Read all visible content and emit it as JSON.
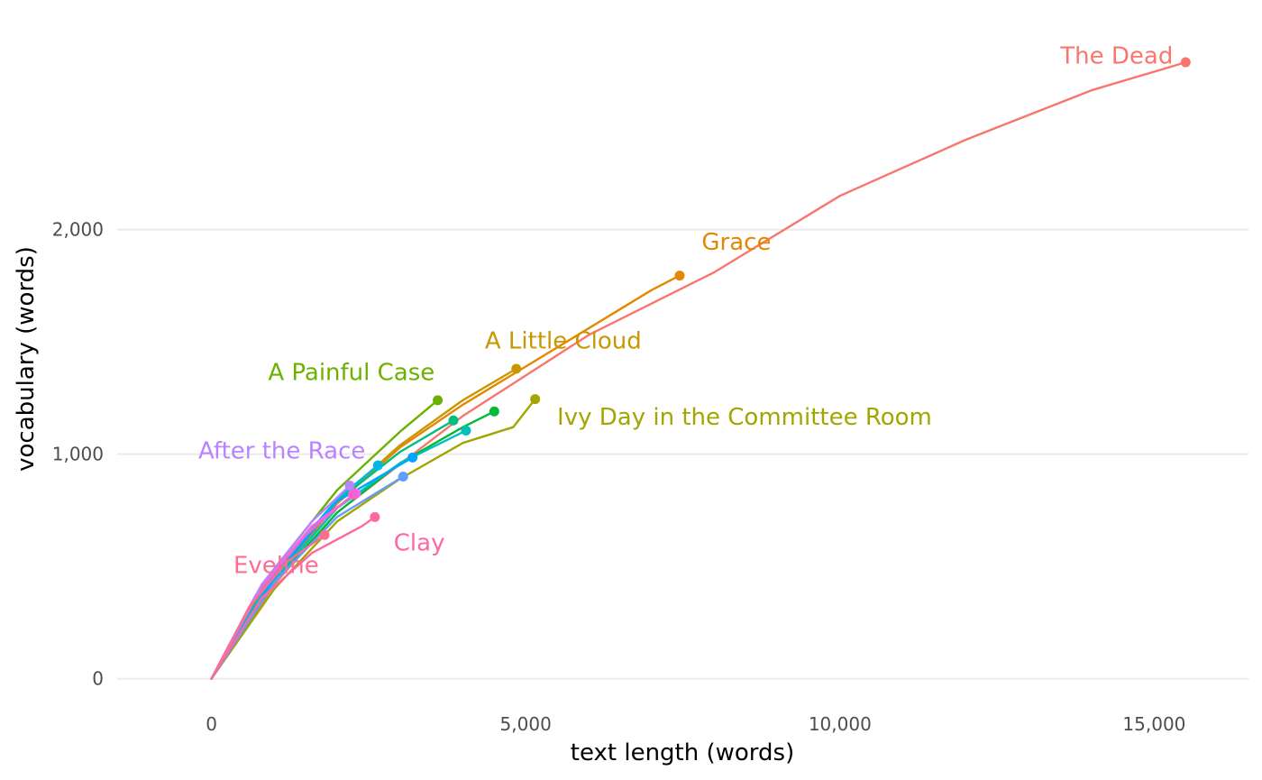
{
  "chart_data": {
    "type": "line",
    "xlabel": "text length (words)",
    "ylabel": "vocabulary (words)",
    "xlim": [
      -1500,
      16500
    ],
    "ylim": [
      -150,
      2950
    ],
    "x_ticks": [
      0,
      5000,
      10000,
      15000
    ],
    "x_tick_labels": [
      "0",
      "5,000",
      "10,000",
      "15,000"
    ],
    "y_ticks": [
      0,
      1000,
      2000
    ],
    "y_tick_labels": [
      "0",
      "1,000",
      "2,000"
    ],
    "grid": "horizontal",
    "legend": "none",
    "series": [
      {
        "name": "The Dead",
        "color": "#F8766D",
        "labeled": true,
        "label_anchor": "end",
        "label_at": [
          15300,
          2740
        ],
        "x": [
          0,
          1000,
          2000,
          4000,
          6000,
          8000,
          10000,
          12000,
          14000,
          15500
        ],
        "y": [
          0,
          420,
          740,
          1170,
          1530,
          1810,
          2150,
          2400,
          2620,
          2745
        ]
      },
      {
        "name": "Grace",
        "color": "#E58700",
        "labeled": true,
        "label_anchor": "start",
        "label_at": [
          7800,
          1910
        ],
        "x": [
          0,
          1000,
          2000,
          3000,
          4000,
          5000,
          6000,
          7000,
          7450
        ],
        "y": [
          0,
          440,
          780,
          1030,
          1220,
          1390,
          1560,
          1730,
          1795
        ]
      },
      {
        "name": "A Little Cloud",
        "color": "#C99800",
        "labeled": true,
        "label_anchor": "start",
        "label_at": [
          4350,
          1470
        ],
        "x": [
          0,
          1000,
          2000,
          3000,
          4000,
          4850
        ],
        "y": [
          0,
          450,
          790,
          1040,
          1240,
          1380
        ]
      },
      {
        "name": "Ivy Day in the Committee Room",
        "color": "#A3A500",
        "labeled": true,
        "label_anchor": "start",
        "label_at": [
          5500,
          1130
        ],
        "x": [
          0,
          1000,
          2000,
          3000,
          4000,
          4800,
          5150
        ],
        "y": [
          0,
          400,
          700,
          890,
          1050,
          1120,
          1245
        ]
      },
      {
        "name": "A Painful Case",
        "color": "#6BB100",
        "labeled": true,
        "label_anchor": "start",
        "label_at": [
          900,
          1330
        ],
        "x": [
          0,
          1000,
          2000,
          3000,
          3600
        ],
        "y": [
          0,
          490,
          840,
          1100,
          1240
        ]
      },
      {
        "name": "",
        "color": "#00BA38",
        "labeled": false,
        "x": [
          0,
          1000,
          2000,
          3000,
          4000,
          4500
        ],
        "y": [
          0,
          430,
          740,
          960,
          1120,
          1190
        ]
      },
      {
        "name": "",
        "color": "#00BF7D",
        "labeled": false,
        "x": [
          0,
          1000,
          2000,
          3000,
          3850
        ],
        "y": [
          0,
          460,
          790,
          1010,
          1150
        ]
      },
      {
        "name": "",
        "color": "#00C0B8",
        "labeled": false,
        "x": [
          0,
          1000,
          2000,
          3000,
          4050
        ],
        "y": [
          0,
          440,
          760,
          960,
          1105
        ]
      },
      {
        "name": "",
        "color": "#00B8E5",
        "labeled": false,
        "x": [
          0,
          1000,
          2000,
          2650
        ],
        "y": [
          0,
          470,
          800,
          950
        ]
      },
      {
        "name": "",
        "color": "#00A5FF",
        "labeled": false,
        "x": [
          0,
          1000,
          2000,
          3200
        ],
        "y": [
          0,
          450,
          790,
          985
        ]
      },
      {
        "name": "",
        "color": "#619CFF",
        "labeled": false,
        "x": [
          0,
          1000,
          2000,
          3050
        ],
        "y": [
          0,
          430,
          720,
          900
        ]
      },
      {
        "name": "After the Race",
        "color": "#B983FF",
        "labeled": true,
        "label_anchor": "end",
        "label_at": [
          2450,
          980
        ],
        "x": [
          0,
          800,
          1600,
          2200
        ],
        "y": [
          0,
          420,
          700,
          860
        ]
      },
      {
        "name": "",
        "color": "#E76BF3",
        "labeled": false,
        "x": [
          0,
          800,
          1600,
          2300
        ],
        "y": [
          0,
          410,
          680,
          825
        ]
      },
      {
        "name": "",
        "color": "#FD61D1",
        "labeled": false,
        "x": [
          0,
          700,
          1500,
          2250
        ],
        "y": [
          0,
          370,
          640,
          820
        ]
      },
      {
        "name": "Clay",
        "color": "#FF67A4",
        "labeled": true,
        "label_anchor": "start",
        "label_at": [
          2900,
          570
        ],
        "x": [
          0,
          800,
          1600,
          2400,
          2600
        ],
        "y": [
          0,
          360,
          560,
          680,
          720
        ]
      },
      {
        "name": "Eveline",
        "color": "#FF6C91",
        "labeled": true,
        "label_anchor": "start",
        "label_at": [
          350,
          470
        ],
        "x": [
          0,
          600,
          1200,
          1800
        ],
        "y": [
          0,
          320,
          520,
          640
        ]
      }
    ]
  }
}
